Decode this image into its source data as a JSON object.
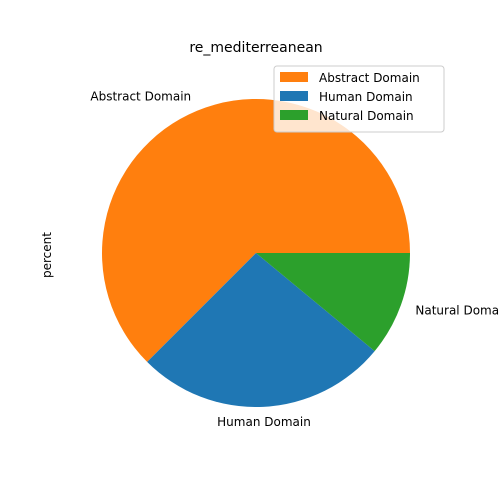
{
  "chart_data": {
    "type": "pie",
    "title": "re_mediterreanean",
    "ylabel": "percent",
    "labels": [
      "Abstract Domain",
      "Human Domain",
      "Natural Domain"
    ],
    "values": [
      62.5,
      26.5,
      11.0
    ],
    "colors": [
      "#ff7f0e",
      "#1f77b4",
      "#2ca02c"
    ],
    "legend": {
      "placement": "upper-right",
      "entries": [
        "Abstract Domain",
        "Human Domain",
        "Natural Domain"
      ]
    }
  }
}
